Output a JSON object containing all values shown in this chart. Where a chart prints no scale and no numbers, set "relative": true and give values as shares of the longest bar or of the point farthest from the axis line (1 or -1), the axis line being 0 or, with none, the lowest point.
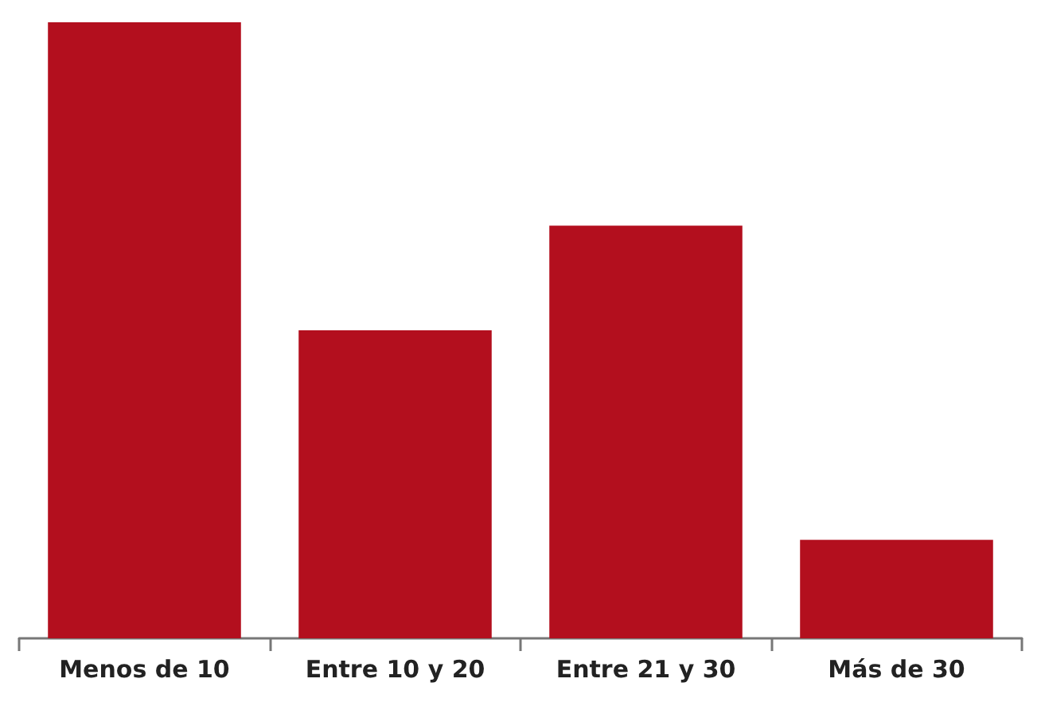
{
  "chart_data": {
    "type": "bar",
    "relative": true,
    "categories": [
      "Menos de 10",
      "Entre 10 y 20",
      "Entre 21 y 30",
      "Más de 30"
    ],
    "values": [
      1,
      0.5,
      0.67,
      0.16
    ],
    "color": "#b30f1e"
  }
}
